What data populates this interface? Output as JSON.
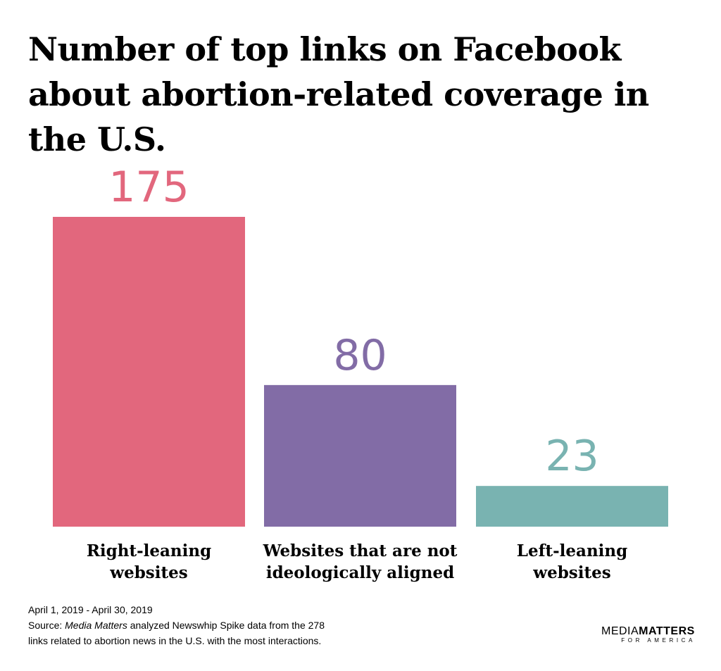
{
  "chart_data": {
    "type": "bar",
    "title": "Number of top links on Facebook about abortion-related coverage in the U.S.",
    "categories": [
      [
        "Right-leaning",
        "websites"
      ],
      [
        "Websites that are not",
        "ideologically aligned"
      ],
      [
        "Left-leaning",
        "websites"
      ]
    ],
    "values": [
      175,
      80,
      23
    ],
    "colors": [
      "#E2677D",
      "#826CA6",
      "#79B3B1"
    ],
    "value_labels": [
      "175",
      "80",
      "23"
    ],
    "ylim": [
      0,
      175
    ],
    "grid": false,
    "legend": "none"
  },
  "footer": {
    "date_range": "April 1, 2019 - April 30, 2019",
    "source_prefix": "Source: ",
    "source_italic": "Media Matters",
    "source_line1_rest": " analyzed Newswhip Spike data from the 278",
    "source_line2": "links related to abortion news in the U.S. with the most interactions."
  },
  "logo": {
    "word1": "MEDIA",
    "word2": "MATTERS",
    "sub": "FOR AMERICA"
  }
}
